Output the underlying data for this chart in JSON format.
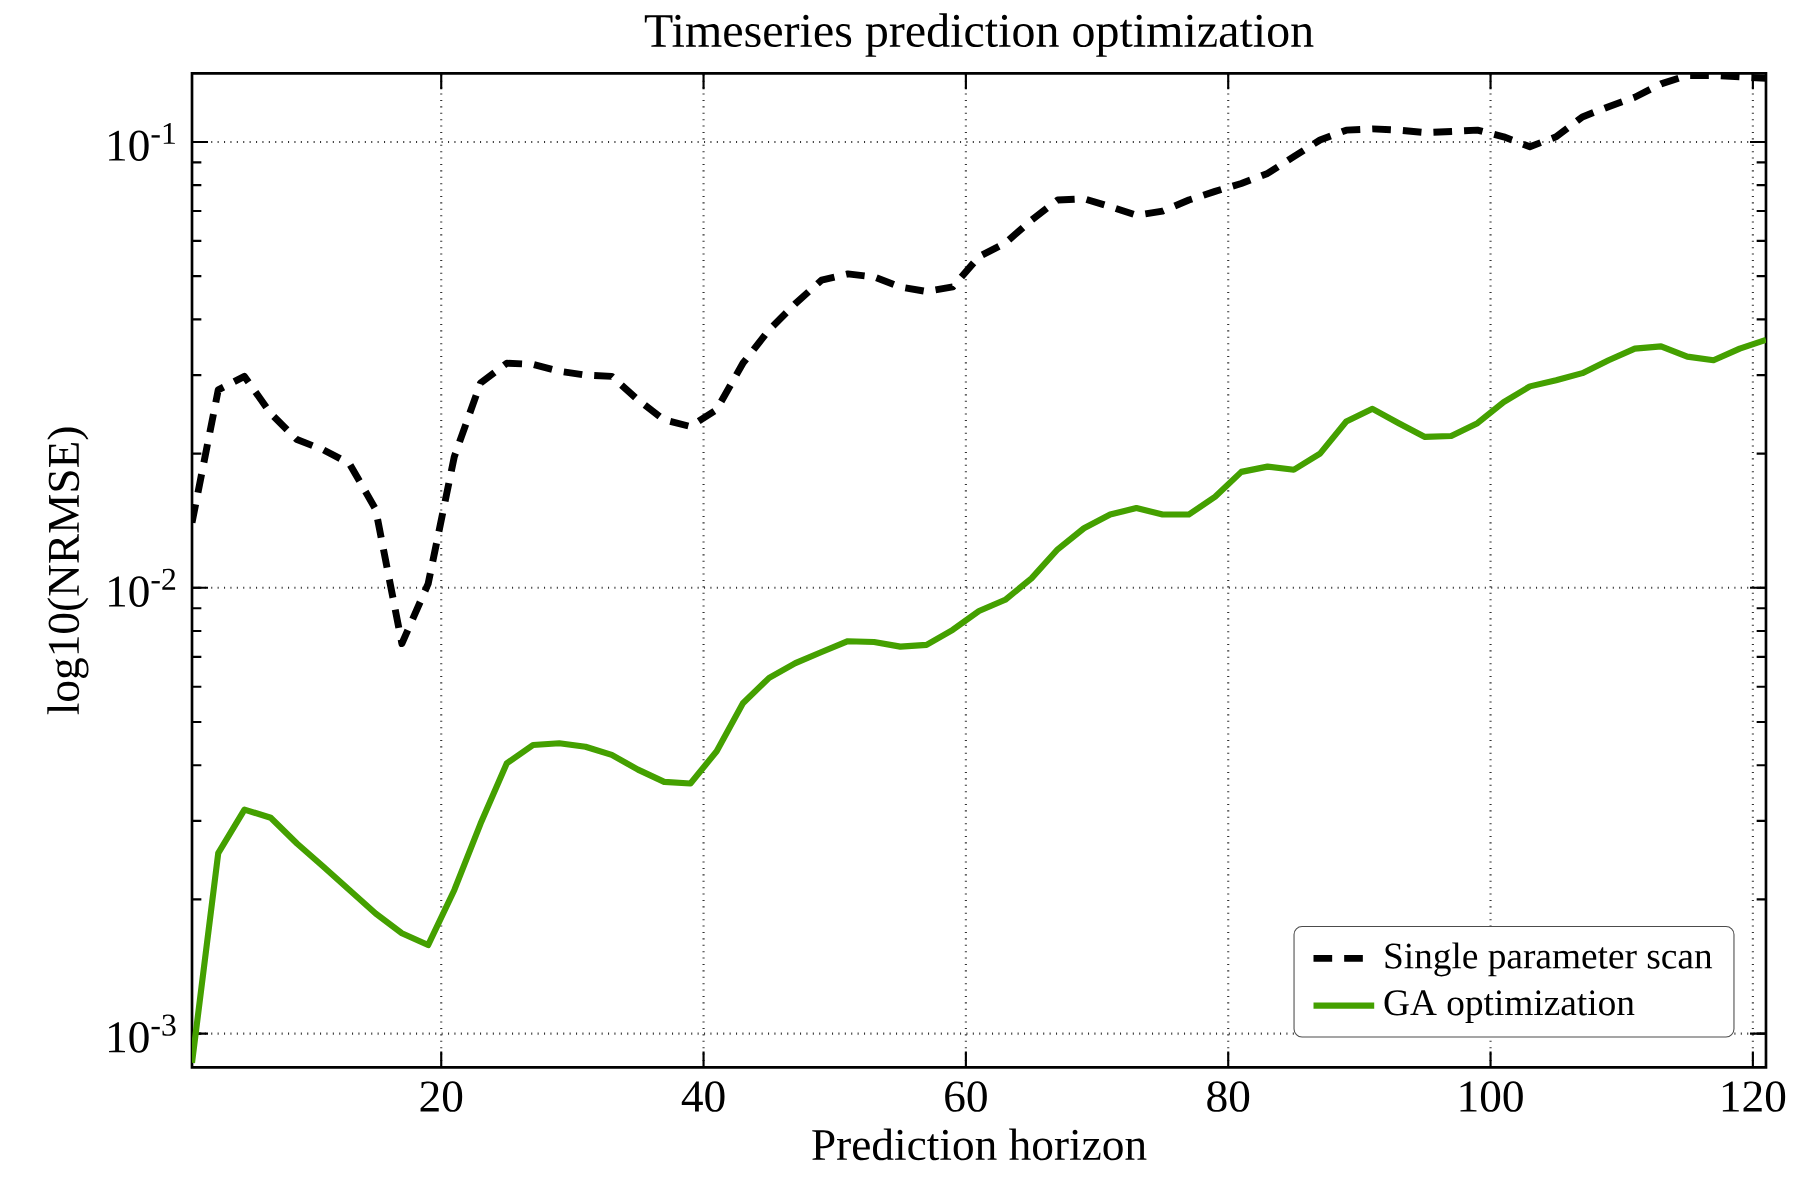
{
  "chart_data": {
    "type": "line",
    "title": "Timeseries prediction optimization",
    "xlabel": "Prediction horizon",
    "ylabel": "log10(NRMSE)",
    "x": [
      1,
      3,
      5,
      7,
      9,
      11,
      13,
      15,
      17,
      19,
      21,
      23,
      25,
      27,
      29,
      31,
      33,
      35,
      37,
      39,
      41,
      43,
      45,
      47,
      49,
      51,
      53,
      55,
      57,
      59,
      61,
      63,
      65,
      67,
      69,
      71,
      73,
      75,
      77,
      79,
      81,
      83,
      85,
      87,
      89,
      91,
      93,
      95,
      97,
      99,
      101,
      103,
      105,
      107,
      109,
      111,
      113,
      115,
      117,
      119,
      121
    ],
    "series": [
      {
        "name": "Single parameter scan",
        "color": "#000000",
        "line_style": "dashed",
        "values": [
          0.014,
          0.0278,
          0.0298,
          0.0246,
          0.0215,
          0.0204,
          0.019,
          0.015,
          0.0075,
          0.0102,
          0.0197,
          0.0288,
          0.0319,
          0.0317,
          0.0306,
          0.03,
          0.0298,
          0.0264,
          0.0238,
          0.023,
          0.0251,
          0.0319,
          0.0379,
          0.0434,
          0.049,
          0.0506,
          0.0498,
          0.0473,
          0.0462,
          0.0473,
          0.0553,
          0.0593,
          0.0668,
          0.0741,
          0.0746,
          0.0716,
          0.0685,
          0.07,
          0.0741,
          0.0775,
          0.0807,
          0.085,
          0.0927,
          0.101,
          0.1063,
          0.107,
          0.1063,
          0.105,
          0.1056,
          0.1063,
          0.1027,
          0.0976,
          0.1027,
          0.1138,
          0.12,
          0.126,
          0.135,
          0.141,
          0.141,
          0.14,
          0.139
        ]
      },
      {
        "name": "GA optimization",
        "color": "#44a000",
        "line_style": "solid",
        "values": [
          0.00086,
          0.00254,
          0.00318,
          0.00305,
          0.00267,
          0.00237,
          0.0021,
          0.00186,
          0.00168,
          0.00158,
          0.0021,
          0.00296,
          0.00404,
          0.00444,
          0.00448,
          0.0044,
          0.00422,
          0.00391,
          0.00367,
          0.00364,
          0.0043,
          0.00551,
          0.00628,
          0.00678,
          0.00718,
          0.00759,
          0.00756,
          0.00738,
          0.00745,
          0.00805,
          0.00887,
          0.0094,
          0.0105,
          0.0122,
          0.0136,
          0.0146,
          0.0151,
          0.0146,
          0.0146,
          0.016,
          0.0182,
          0.0187,
          0.0184,
          0.02,
          0.0236,
          0.0252,
          0.0234,
          0.0218,
          0.0219,
          0.0234,
          0.0261,
          0.0283,
          0.0292,
          0.0303,
          0.0324,
          0.0344,
          0.0348,
          0.033,
          0.0324,
          0.0344,
          0.036
        ]
      }
    ],
    "xlim": [
      1,
      121
    ],
    "ylim": [
      0.00084,
      0.1425
    ],
    "xticks": [
      20,
      40,
      60,
      80,
      100,
      120
    ],
    "yticks": [
      {
        "value": 0.001,
        "label": "10$^{-3}$"
      },
      {
        "value": 0.01,
        "label": "10$^{-2}$"
      },
      {
        "value": 0.1,
        "label": "10$^{-1}$"
      }
    ],
    "log": "y",
    "grid": true,
    "legend": "bottom right",
    "marker": "none"
  }
}
